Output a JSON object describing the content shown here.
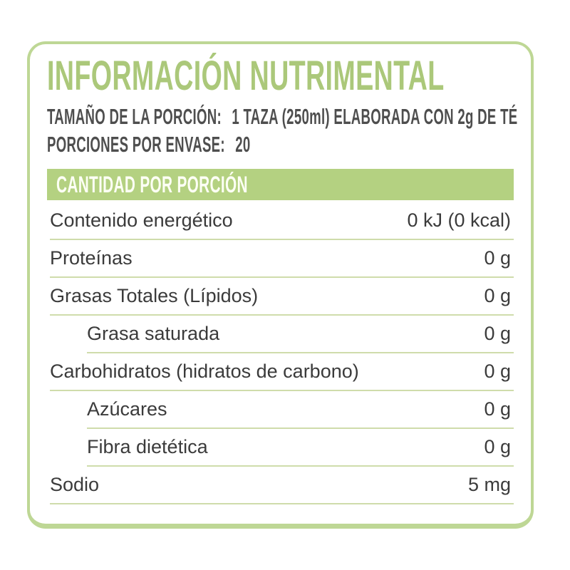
{
  "label": {
    "title": "INFORMACIÓN NUTRIMENTAL",
    "serving": {
      "size_label": "TAMAÑO DE LA PORCIÓN:",
      "size_value": "1 TAZA (250ml) ELABORADA CON 2g DE TÉ",
      "per_container_label": "PORCIONES POR ENVASE:",
      "per_container_value": "20"
    },
    "section_header": "CANTIDAD POR PORCIÓN",
    "rows": [
      {
        "name": "Contenido energético",
        "value": "0 kJ (0 kcal)",
        "indent": false
      },
      {
        "name": "Proteínas",
        "value": "0 g",
        "indent": false
      },
      {
        "name": "Grasas Totales (Lípidos)",
        "value": "0 g",
        "indent": false
      },
      {
        "name": "Grasa saturada",
        "value": "0 g",
        "indent": true
      },
      {
        "name": "Carbohidratos (hidratos de carbono)",
        "value": "0 g",
        "indent": false
      },
      {
        "name": "Azúcares",
        "value": "0 g",
        "indent": true
      },
      {
        "name": "Fibra dietética",
        "value": "0 g",
        "indent": true
      },
      {
        "name": "Sodio",
        "value": "5 mg",
        "indent": false
      }
    ],
    "colors": {
      "accent_green": "#abc87a",
      "bar_green": "#b4d181",
      "border_green": "#bed795",
      "divider_green": "#cfdcab",
      "text_dark": "#3b3b3b"
    }
  }
}
